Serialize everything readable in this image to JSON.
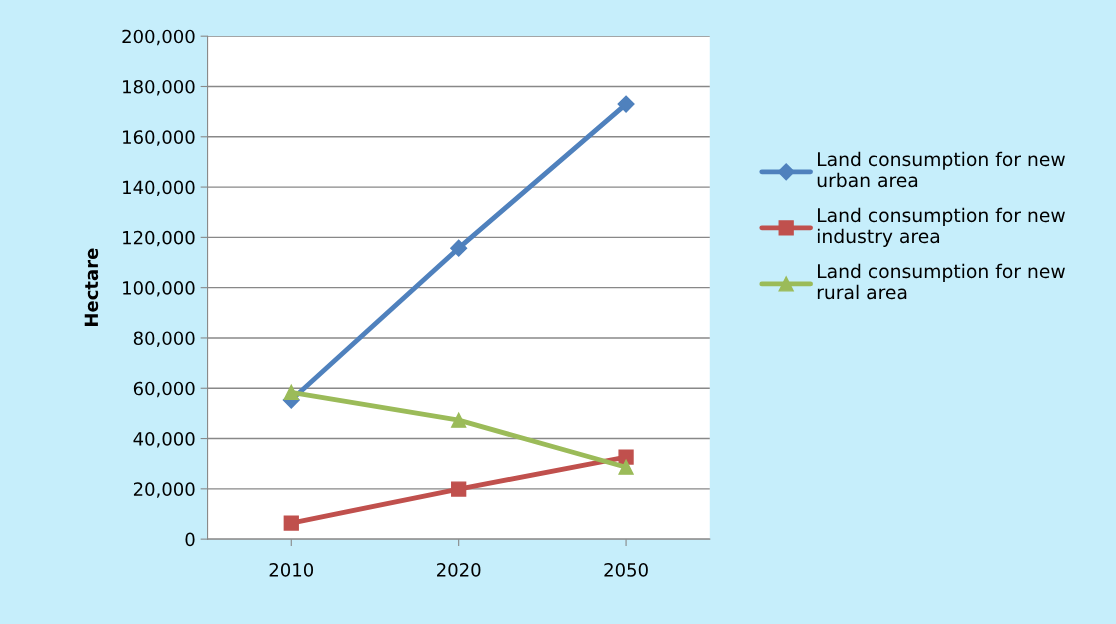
{
  "chart_data": {
    "type": "line",
    "ylabel": "Hectare",
    "categories": [
      "2010",
      "2020",
      "2050"
    ],
    "series": [
      {
        "name": "Land consumption for new urban area",
        "color": "#4f81bd",
        "marker": "diamond",
        "values": [
          55300,
          115700,
          173000
        ]
      },
      {
        "name": "Land consumption for new industry area",
        "color": "#c0504d",
        "marker": "square",
        "values": [
          6400,
          19900,
          32600
        ]
      },
      {
        "name": "Land consumption for new rural area",
        "color": "#9bbb59",
        "marker": "triangle",
        "values": [
          58400,
          47300,
          28600
        ]
      }
    ],
    "ylim": [
      0,
      200000
    ],
    "yticks": [
      {
        "value": 0,
        "label": "0"
      },
      {
        "value": 20000,
        "label": "20,000"
      },
      {
        "value": 40000,
        "label": "40,000"
      },
      {
        "value": 60000,
        "label": "60,000"
      },
      {
        "value": 80000,
        "label": "80,000"
      },
      {
        "value": 100000,
        "label": "100,000"
      },
      {
        "value": 120000,
        "label": "120,000"
      },
      {
        "value": 140000,
        "label": "140,000"
      },
      {
        "value": 160000,
        "label": "160,000"
      },
      {
        "value": 180000,
        "label": "180,000"
      },
      {
        "value": 200000,
        "label": "200,000"
      }
    ],
    "grid": "y",
    "legend": "right",
    "line_style": "solid"
  }
}
